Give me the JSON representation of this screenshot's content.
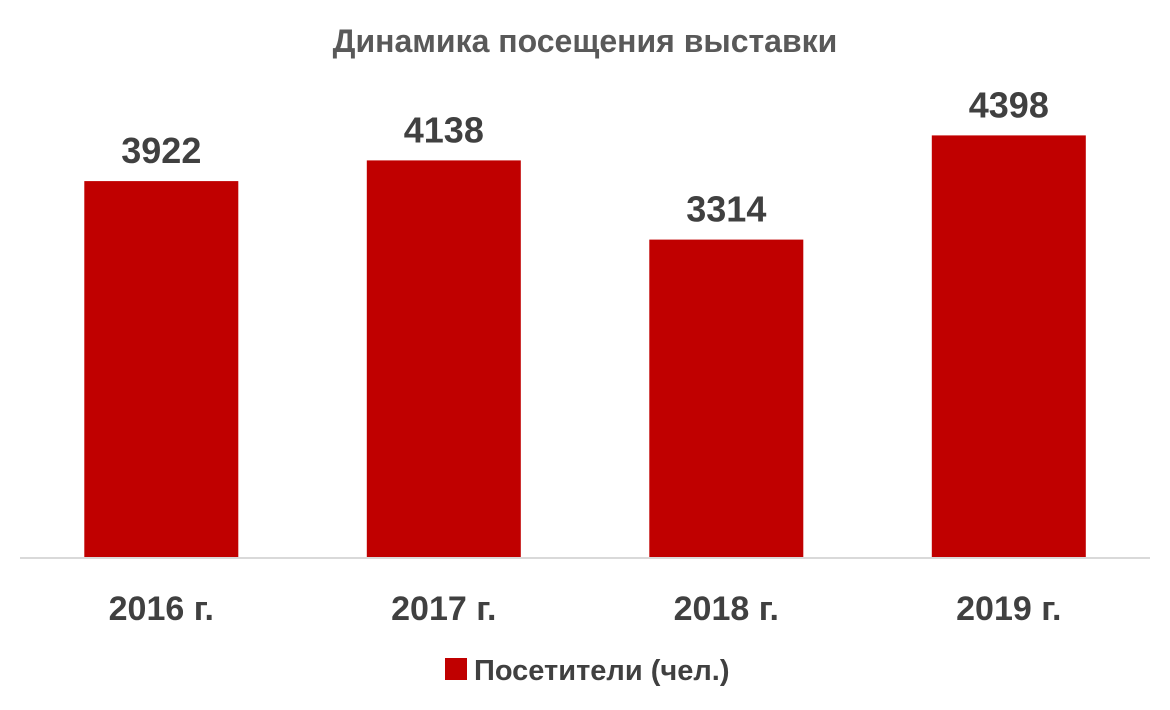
{
  "chart_data": {
    "type": "bar",
    "title": "Динамика посещения выставки",
    "categories": [
      "2016 г.",
      "2017 г.",
      "2018 г.",
      "2019 г."
    ],
    "series": [
      {
        "name": "Посетители (чел.)",
        "values": [
          3922,
          4138,
          3314,
          4398
        ],
        "color": "#c00000"
      }
    ],
    "data_labels": [
      "3922",
      "4138",
      "3314",
      "4398"
    ],
    "xlabel": "",
    "ylabel": "",
    "ylim": [
      0,
      4600
    ],
    "grid": false,
    "legend": "bottom"
  }
}
